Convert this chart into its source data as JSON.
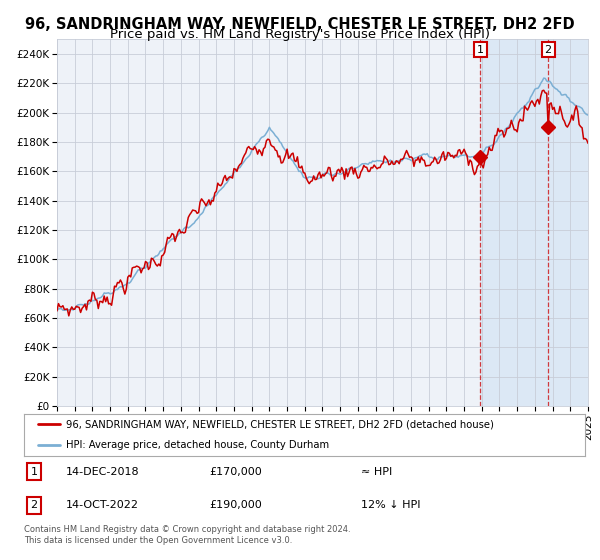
{
  "title": "96, SANDRINGHAM WAY, NEWFIELD, CHESTER LE STREET, DH2 2FD",
  "subtitle": "Price paid vs. HM Land Registry's House Price Index (HPI)",
  "title_fontsize": 10.5,
  "subtitle_fontsize": 9.5,
  "ylim": [
    0,
    250000
  ],
  "yticks": [
    0,
    20000,
    40000,
    60000,
    80000,
    100000,
    120000,
    140000,
    160000,
    180000,
    200000,
    220000,
    240000
  ],
  "ytick_labels": [
    "£0",
    "£20K",
    "£40K",
    "£60K",
    "£80K",
    "£100K",
    "£120K",
    "£140K",
    "£160K",
    "£180K",
    "£200K",
    "£220K",
    "£240K"
  ],
  "background_color": "#ffffff",
  "plot_bg_color": "#eef2f8",
  "grid_color": "#c8cdd8",
  "hpi_color": "#7bafd4",
  "price_color": "#cc0000",
  "highlight_bg_color": "#dce8f5",
  "legend_house": "96, SANDRINGHAM WAY, NEWFIELD, CHESTER LE STREET, DH2 2FD (detached house)",
  "legend_hpi": "HPI: Average price, detached house, County Durham",
  "annot1_date": "14-DEC-2018",
  "annot1_price": "£170,000",
  "annot1_rel": "≈ HPI",
  "annot2_date": "14-OCT-2022",
  "annot2_price": "£190,000",
  "annot2_rel": "12% ↓ HPI",
  "footer": "Contains HM Land Registry data © Crown copyright and database right 2024.\nThis data is licensed under the Open Government Licence v3.0.",
  "start_year": 1995,
  "end_year": 2025,
  "sale1_price": 170000,
  "sale2_price": 190000
}
